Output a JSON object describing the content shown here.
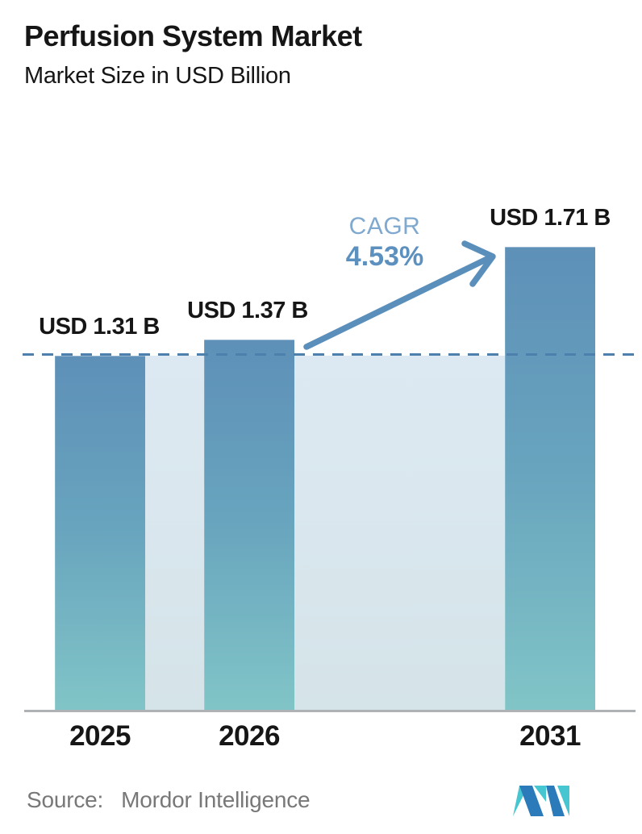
{
  "header": {
    "title": "Perfusion System Market",
    "subtitle": "Market Size in USD Billion"
  },
  "chart_data": {
    "type": "bar",
    "title": "Perfusion System Market",
    "subtitle": "Market Size in USD Billion",
    "unit": "USD Billion",
    "categories": [
      "2025",
      "2026",
      "2031"
    ],
    "values": [
      1.31,
      1.37,
      1.71
    ],
    "value_labels": [
      "USD 1.31 B",
      "USD 1.37 B",
      "USD 1.71 B"
    ],
    "annotation": {
      "label": "CAGR",
      "value": "4.53%"
    },
    "reference_line": {
      "at_value": 1.31,
      "style": "dashed"
    },
    "ylim": [
      0,
      2.17
    ],
    "grid": false,
    "legend": "none",
    "xlabel": "",
    "ylabel": ""
  },
  "footer": {
    "source_label": "Source:",
    "source_name": "Mordor Intelligence",
    "logo": "mordor-intelligence-logo"
  },
  "colors": {
    "ink": "#161616",
    "bar-top": "#5E90B8",
    "bar-mid": "#68A4BE",
    "bar-bottom": "#81C5C7",
    "band-top": "#DDE9F2",
    "band-bottom": "#D5E4E9",
    "dash": "#4E80AE",
    "arrow": "#5B8FBB",
    "cagr-light": "#7FA9CE",
    "cagr-strong": "#5C90BE",
    "axis": "#AFB2B4",
    "muted": "#787878",
    "logo-teal": "#45C6D0",
    "logo-blue": "#2B7AB9"
  }
}
